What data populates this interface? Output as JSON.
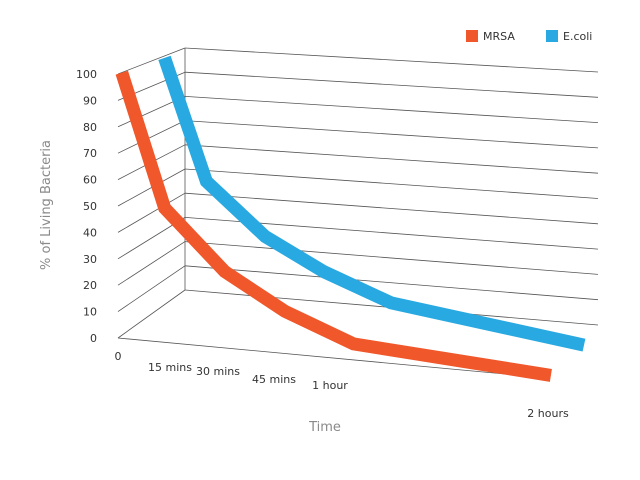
{
  "chart_data": {
    "type": "line",
    "style": "3d-perspective",
    "title": "",
    "xlabel": "Time",
    "ylabel": "% of Living Bacteria",
    "ylim": [
      0,
      100
    ],
    "yticks": [
      "0",
      "10",
      "20",
      "30",
      "40",
      "50",
      "60",
      "70",
      "80",
      "90",
      "100"
    ],
    "categories": [
      "0",
      "15 mins",
      "30 mins",
      "45 mins",
      "1 hour",
      "2 hours"
    ],
    "grid": true,
    "legend_position": "top-right",
    "series": [
      {
        "name": "MRSA",
        "color": "#f0572a",
        "values": [
          100,
          50,
          28,
          15,
          5,
          0
        ]
      },
      {
        "name": "E.coli",
        "color": "#29a9e1",
        "values": [
          100,
          52,
          32,
          20,
          10,
          0
        ]
      }
    ]
  }
}
